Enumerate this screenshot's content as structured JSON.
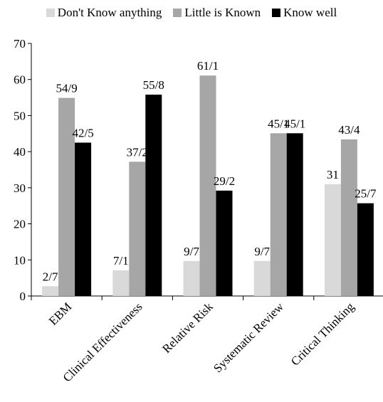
{
  "chart_data": {
    "type": "bar",
    "categories": [
      "EBM",
      "Clinical Effectiveness",
      "Relative Risk",
      "Systematic Review",
      "Critical Thinking"
    ],
    "series": [
      {
        "name": "Don't Know anything",
        "color": "#d9d9d9",
        "values": [
          2.7,
          7.1,
          9.7,
          9.7,
          31
        ],
        "labels": [
          "2/7",
          "7/1",
          "9/7",
          "9/7",
          "31"
        ]
      },
      {
        "name": "Little is Known",
        "color": "#a6a6a6",
        "values": [
          54.9,
          37.2,
          61.1,
          45.1,
          43.4
        ],
        "labels": [
          "54/9",
          "37/2",
          "61/1",
          "45/1",
          "43/4"
        ]
      },
      {
        "name": "Know well",
        "color": "#000000",
        "values": [
          42.5,
          55.8,
          29.2,
          45.1,
          25.7
        ],
        "labels": [
          "42/5",
          "55/8",
          "29/2",
          "45/1",
          "25/7"
        ]
      }
    ],
    "ylim": [
      0,
      70
    ],
    "yticks": [
      0,
      10,
      20,
      30,
      40,
      50,
      60,
      70
    ],
    "legend_position": "top",
    "grid": false
  }
}
